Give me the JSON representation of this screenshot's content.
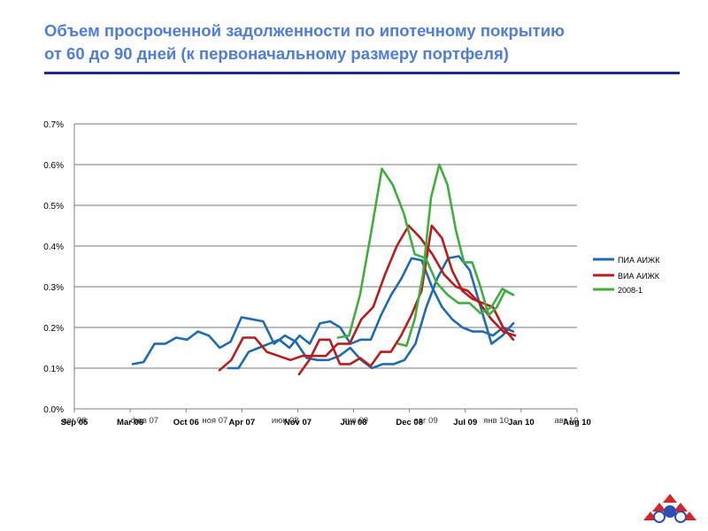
{
  "title": {
    "line1": "Объем просроченной задолженности по ипотечному покрытию",
    "line2": "от 60 до 90 дней (к первоначальному размеру портфеля)"
  },
  "chart_data": {
    "type": "line",
    "ylim": [
      0,
      0.7
    ],
    "y_ticks": [
      "0.0%",
      "0.1%",
      "0.2%",
      "0.3%",
      "0.4%",
      "0.5%",
      "0.6%",
      "0.7%"
    ],
    "x_ticks_a": [
      "Sep 05",
      "Mar 06",
      "Oct 06",
      "Apr 07",
      "Nov 07",
      "Jun 08",
      "Dec 08",
      "Jul 09",
      "Jan 10",
      "Aug 10"
    ],
    "x_ticks_b": [
      "авг 06",
      "фев 07",
      "ноя 07",
      "июн 08",
      "янв 09",
      "авг 09",
      "янв 10",
      "авг 10"
    ],
    "grid": true,
    "legend_position": "right",
    "series": [
      {
        "name": "ПИА АИЖК",
        "color": "#1f6bb0",
        "values": [
          [
            0,
            0.11
          ],
          [
            1,
            0.115
          ],
          [
            2,
            0.16
          ],
          [
            3,
            0.16
          ],
          [
            4,
            0.175
          ],
          [
            5,
            0.17
          ],
          [
            6,
            0.19
          ],
          [
            7,
            0.18
          ],
          [
            8,
            0.15
          ],
          [
            9,
            0.165
          ],
          [
            10,
            0.225
          ],
          [
            11,
            0.22
          ],
          [
            12,
            0.215
          ],
          [
            13,
            0.16
          ],
          [
            14,
            0.18
          ],
          [
            15,
            0.165
          ],
          [
            16,
            0.125
          ],
          [
            17,
            0.12
          ],
          [
            18,
            0.12
          ],
          [
            19,
            0.13
          ],
          [
            20,
            0.15
          ],
          [
            21,
            0.12
          ],
          [
            22,
            0.1
          ],
          [
            23,
            0.11
          ],
          [
            24,
            0.11
          ],
          [
            25,
            0.12
          ],
          [
            26,
            0.16
          ],
          [
            27,
            0.25
          ],
          [
            28,
            0.32
          ],
          [
            29,
            0.37
          ],
          [
            30,
            0.375
          ],
          [
            31,
            0.34
          ],
          [
            32,
            0.25
          ],
          [
            33,
            0.16
          ],
          [
            34,
            0.18
          ],
          [
            35,
            0.21
          ]
        ]
      },
      {
        "name": "ПИА АИЖК",
        "color": "#1f6bb0",
        "values": [
          [
            0,
            0.1
          ],
          [
            1,
            0.1
          ],
          [
            2,
            0.14
          ],
          [
            3,
            0.15
          ],
          [
            4,
            0.16
          ],
          [
            5,
            0.17
          ],
          [
            6,
            0.15
          ],
          [
            7,
            0.18
          ],
          [
            8,
            0.16
          ],
          [
            9,
            0.21
          ],
          [
            10,
            0.215
          ],
          [
            11,
            0.2
          ],
          [
            12,
            0.16
          ],
          [
            13,
            0.17
          ],
          [
            14,
            0.17
          ],
          [
            15,
            0.23
          ],
          [
            16,
            0.28
          ],
          [
            17,
            0.32
          ],
          [
            18,
            0.37
          ],
          [
            19,
            0.365
          ],
          [
            20,
            0.3
          ],
          [
            21,
            0.25
          ],
          [
            22,
            0.22
          ],
          [
            23,
            0.2
          ],
          [
            24,
            0.19
          ],
          [
            25,
            0.19
          ],
          [
            26,
            0.18
          ],
          [
            27,
            0.2
          ],
          [
            28,
            0.19
          ]
        ]
      },
      {
        "name": "ВИА АИЖК",
        "color": "#b81c1c",
        "values": [
          [
            0,
            0.095
          ],
          [
            1,
            0.12
          ],
          [
            2,
            0.175
          ],
          [
            3,
            0.175
          ],
          [
            4,
            0.14
          ],
          [
            5,
            0.13
          ],
          [
            6,
            0.12
          ],
          [
            7,
            0.13
          ],
          [
            8,
            0.13
          ],
          [
            9,
            0.13
          ],
          [
            10,
            0.16
          ],
          [
            11,
            0.16
          ],
          [
            12,
            0.22
          ],
          [
            13,
            0.25
          ],
          [
            14,
            0.33
          ],
          [
            15,
            0.4
          ],
          [
            16,
            0.45
          ],
          [
            17,
            0.42
          ],
          [
            18,
            0.38
          ],
          [
            19,
            0.33
          ],
          [
            20,
            0.3
          ],
          [
            21,
            0.29
          ],
          [
            22,
            0.26
          ],
          [
            23,
            0.22
          ],
          [
            24,
            0.19
          ],
          [
            25,
            0.18
          ]
        ]
      },
      {
        "name": "ВИА АИЖК",
        "color": "#b81c1c",
        "values": [
          [
            0,
            0.085
          ],
          [
            1,
            0.12
          ],
          [
            2,
            0.17
          ],
          [
            3,
            0.17
          ],
          [
            4,
            0.11
          ],
          [
            5,
            0.11
          ],
          [
            6,
            0.125
          ],
          [
            7,
            0.105
          ],
          [
            8,
            0.14
          ],
          [
            9,
            0.14
          ],
          [
            10,
            0.18
          ],
          [
            11,
            0.23
          ],
          [
            12,
            0.29
          ],
          [
            13,
            0.45
          ],
          [
            14,
            0.42
          ],
          [
            15,
            0.34
          ],
          [
            16,
            0.29
          ],
          [
            17,
            0.27
          ],
          [
            18,
            0.26
          ],
          [
            19,
            0.25
          ],
          [
            20,
            0.2
          ],
          [
            21,
            0.17
          ]
        ]
      },
      {
        "name": "2008-1",
        "color": "#3fae3f",
        "values": [
          [
            0,
            0.175
          ],
          [
            1,
            0.18
          ],
          [
            2,
            0.28
          ],
          [
            3,
            0.43
          ],
          [
            4,
            0.59
          ],
          [
            5,
            0.55
          ],
          [
            6,
            0.48
          ],
          [
            7,
            0.38
          ],
          [
            8,
            0.37
          ],
          [
            9,
            0.31
          ],
          [
            10,
            0.28
          ],
          [
            11,
            0.26
          ],
          [
            12,
            0.26
          ],
          [
            13,
            0.235
          ],
          [
            14,
            0.25
          ],
          [
            15,
            0.295
          ],
          [
            16,
            0.28
          ]
        ]
      },
      {
        "name": "2008-1",
        "color": "#3fae3f",
        "values": [
          [
            0,
            0.16
          ],
          [
            1,
            0.155
          ],
          [
            2,
            0.22
          ],
          [
            3,
            0.33
          ],
          [
            4,
            0.52
          ],
          [
            5,
            0.6
          ],
          [
            6,
            0.55
          ],
          [
            7,
            0.44
          ],
          [
            8,
            0.36
          ],
          [
            9,
            0.36
          ],
          [
            10,
            0.3
          ],
          [
            11,
            0.23
          ],
          [
            12,
            0.25
          ],
          [
            13,
            0.29
          ],
          [
            14,
            0.28
          ]
        ]
      }
    ],
    "legend": [
      "ПИА АИЖК",
      "ВИА АИЖК",
      "2008-1"
    ]
  }
}
